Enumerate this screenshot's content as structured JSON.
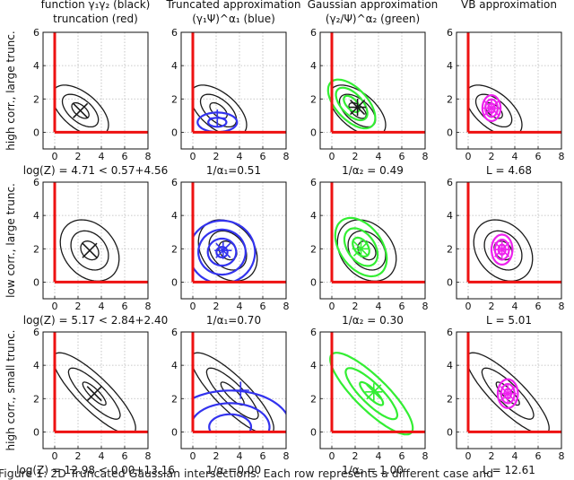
{
  "column_titles": [
    {
      "line1": "function γ₁γ₂ (black)",
      "line2": "truncation (red)"
    },
    {
      "line1": "Truncated approximation",
      "line2": "(γ₁Ψ)^α₁ (blue)"
    },
    {
      "line1": "Gaussian approximation",
      "line2": "(γ₂/Ψ)^α₂ (green)"
    },
    {
      "line1": "VB approximation",
      "line2": ""
    }
  ],
  "row_labels": [
    {
      "line1": "high corr., large trunc.",
      "line2": ""
    },
    {
      "line1": "low corr., large trunc.",
      "line2": ""
    },
    {
      "line1": "high corr., small trunc.",
      "line2": ""
    }
  ],
  "captions": [
    [
      "log(Z) = 4.71 < 0.57+4.56",
      "1/α₁=0.51",
      "1/α₂ = 0.49",
      "L = 4.68"
    ],
    [
      "log(Z) = 5.17 < 2.84+2.40",
      "1/α₁=0.70",
      "1/α₂ = 0.30",
      "L = 5.01"
    ],
    [
      "log(Z) = 12.98 < 0.00+13.16",
      "1/α₁=0.00",
      "1/α₂ = 1.00",
      "L = 12.61"
    ]
  ],
  "figure_caption": "Figure 1: 2D Truncated Gaussian intersections. Each row represents a different case and",
  "colors": {
    "black": "#1a1a1a",
    "red": "#ee1111",
    "blue": "#3333ee",
    "green": "#33ee33",
    "magenta": "#ee22ee"
  },
  "chart_data": {
    "type": "grid of contour plots",
    "rows": 3,
    "cols": 4,
    "xlim": [
      -1,
      8
    ],
    "ylim": [
      -1,
      6
    ],
    "xticks": [
      0,
      2,
      4,
      6,
      8
    ],
    "yticks": [
      0,
      2,
      4,
      6
    ],
    "grid": "dotted",
    "truncation_lines": "x=0 and y=0 (red)",
    "panels": [
      [
        {
          "layers": [
            {
              "color": "black",
              "mean": [
                2.2,
                1.3
              ],
              "sx": 1.45,
              "sy": 0.65,
              "angle": -25,
              "levels": [
                0.55,
                1.15,
                1.8
              ],
              "clip": true
            }
          ],
          "marker": {
            "type": "x",
            "at": [
              2.2,
              1.3
            ],
            "color": "black"
          }
        },
        {
          "layers": [
            {
              "color": "black",
              "mean": [
                2.2,
                1.3
              ],
              "sx": 1.45,
              "sy": 0.65,
              "angle": -25,
              "levels": [
                0.55,
                1.15,
                1.8
              ],
              "clip": true
            },
            {
              "color": "blue",
              "mean": [
                2.1,
                0.6
              ],
              "sx": 1.3,
              "sy": 0.45,
              "angle": 0,
              "levels": [
                0.6,
                1.3
              ],
              "clip": true
            }
          ],
          "marker": {
            "type": "plus",
            "at": [
              2.1,
              0.85
            ],
            "color": "blue"
          }
        },
        {
          "layers": [
            {
              "color": "black",
              "mean": [
                2.2,
                1.3
              ],
              "sx": 1.45,
              "sy": 0.65,
              "angle": -25,
              "levels": [
                0.55,
                1.15,
                1.8
              ],
              "clip": true
            },
            {
              "color": "green",
              "mean": [
                1.7,
                1.7
              ],
              "sx": 1.5,
              "sy": 0.72,
              "angle": -30,
              "levels": [
                0.5,
                1.0,
                1.5
              ],
              "clip": false
            }
          ],
          "marker": {
            "type": "star",
            "at": [
              2.2,
              1.5
            ],
            "color": "black"
          }
        },
        {
          "layers": [
            {
              "color": "black",
              "mean": [
                2.2,
                1.3
              ],
              "sx": 1.45,
              "sy": 0.65,
              "angle": -25,
              "levels": [
                0.55,
                1.15,
                1.8
              ],
              "clip": true
            },
            {
              "color": "magenta",
              "mean": [
                2.0,
                1.45
              ],
              "sx": 0.62,
              "sy": 0.62,
              "angle": 0,
              "levels": [
                0.45,
                0.85,
                1.25
              ],
              "clip": false
            }
          ],
          "marker": {
            "type": "star",
            "at": [
              2.0,
              1.45
            ],
            "color": "magenta"
          }
        }
      ],
      [
        {
          "layers": [
            {
              "color": "black",
              "mean": [
                3.0,
                1.9
              ],
              "sx": 1.45,
              "sy": 0.95,
              "angle": -20,
              "levels": [
                0.55,
                1.15,
                1.8
              ],
              "clip": true
            }
          ],
          "marker": {
            "type": "x",
            "at": [
              3.0,
              1.9
            ],
            "color": "black"
          }
        },
        {
          "layers": [
            {
              "color": "black",
              "mean": [
                3.0,
                1.9
              ],
              "sx": 1.45,
              "sy": 0.95,
              "angle": -20,
              "levels": [
                0.55,
                1.15,
                1.8
              ],
              "clip": true
            },
            {
              "color": "blue",
              "mean": [
                2.5,
                1.8
              ],
              "sx": 1.35,
              "sy": 0.9,
              "angle": 0,
              "levels": [
                0.35,
                0.9,
                1.5,
                2.1
              ],
              "clip": true
            }
          ],
          "marker": {
            "type": "star",
            "at": [
              2.6,
              1.9
            ],
            "color": "blue"
          }
        },
        {
          "layers": [
            {
              "color": "black",
              "mean": [
                3.0,
                1.9
              ],
              "sx": 1.45,
              "sy": 0.95,
              "angle": -20,
              "levels": [
                0.55,
                1.15,
                1.8
              ],
              "clip": true
            },
            {
              "color": "green",
              "mean": [
                2.5,
                2.1
              ],
              "sx": 1.55,
              "sy": 0.95,
              "angle": -30,
              "levels": [
                0.5,
                1.0,
                1.55
              ],
              "clip": false
            }
          ],
          "marker": {
            "type": "star",
            "at": [
              2.5,
              2.0
            ],
            "color": "green"
          }
        },
        {
          "layers": [
            {
              "color": "black",
              "mean": [
                3.0,
                1.9
              ],
              "sx": 1.45,
              "sy": 0.95,
              "angle": -20,
              "levels": [
                0.55,
                1.15,
                1.8
              ],
              "clip": true
            },
            {
              "color": "magenta",
              "mean": [
                2.9,
                1.95
              ],
              "sx": 0.75,
              "sy": 0.75,
              "angle": 0,
              "levels": [
                0.4,
                0.8,
                1.2
              ],
              "clip": false
            }
          ],
          "marker": {
            "type": "star",
            "at": [
              2.9,
              1.95
            ],
            "color": "magenta"
          }
        }
      ],
      [
        {
          "layers": [
            {
              "color": "black",
              "mean": [
                3.4,
                2.3
              ],
              "sx": 2.6,
              "sy": 0.7,
              "angle": -33,
              "levels": [
                0.45,
                1.0,
                1.6
              ],
              "clip": true
            }
          ],
          "marker": {
            "type": "x",
            "at": [
              3.4,
              2.3
            ],
            "color": "black"
          }
        },
        {
          "layers": [
            {
              "color": "black",
              "mean": [
                3.4,
                2.3
              ],
              "sx": 2.6,
              "sy": 0.7,
              "angle": -33,
              "levels": [
                0.45,
                1.0,
                1.6
              ],
              "clip": true
            },
            {
              "color": "blue",
              "mean": [
                3.2,
                0.3
              ],
              "sx": 4.5,
              "sy": 1.9,
              "angle": 0,
              "levels": [
                0.4,
                0.75,
                1.15
              ],
              "clip": true
            }
          ],
          "marker": {
            "type": "plus",
            "at": [
              4.1,
              2.5
            ],
            "color": "blue"
          }
        },
        {
          "layers": [
            {
              "color": "black",
              "mean": [
                3.4,
                2.3
              ],
              "sx": 2.6,
              "sy": 0.7,
              "angle": -33,
              "levels": [
                0.45,
                1.0,
                1.6
              ],
              "clip": true
            },
            {
              "color": "green",
              "mean": [
                3.4,
                2.3
              ],
              "sx": 2.6,
              "sy": 0.7,
              "angle": -33,
              "levels": [
                0.45,
                1.0,
                1.6
              ],
              "clip": false
            }
          ],
          "marker": {
            "type": "star",
            "at": [
              3.6,
              2.4
            ],
            "color": "green"
          }
        },
        {
          "layers": [
            {
              "color": "black",
              "mean": [
                3.4,
                2.3
              ],
              "sx": 2.6,
              "sy": 0.7,
              "angle": -33,
              "levels": [
                0.45,
                1.0,
                1.6
              ],
              "clip": true
            },
            {
              "color": "magenta",
              "mean": [
                3.4,
                2.3
              ],
              "sx": 0.72,
              "sy": 0.72,
              "angle": 0,
              "levels": [
                0.4,
                0.8,
                1.2
              ],
              "clip": false
            }
          ],
          "marker": {
            "type": "star",
            "at": [
              3.4,
              2.3
            ],
            "color": "magenta"
          }
        }
      ]
    ]
  }
}
